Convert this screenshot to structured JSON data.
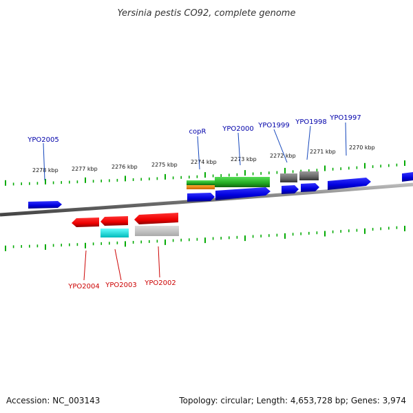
{
  "title": "Yersinia pestis CO92, complete genome",
  "footer": {
    "accession": "Accession: NC_003143",
    "summary": "Topology: circular; Length: 4,653,728 bp; Genes: 3,974"
  },
  "colors": {
    "forward_gene": "#0000ee",
    "reverse_gene": "#ee0000",
    "label_forward": "#0000aa",
    "label_reverse": "#cc0000",
    "tick": "#00aa00",
    "backbone": "#8a8a8a"
  },
  "scale_labels": [
    {
      "text": "2278 kbp"
    },
    {
      "text": "2277 kbp"
    },
    {
      "text": "2276 kbp"
    },
    {
      "text": "2275 kbp"
    },
    {
      "text": "2274 kbp"
    },
    {
      "text": "2273 kbp"
    },
    {
      "text": "2272 kbp"
    },
    {
      "text": "2271 kbp"
    },
    {
      "text": "2270 kbp"
    }
  ],
  "gene_labels": [
    {
      "text": "YPO2005",
      "strand": "forward"
    },
    {
      "text": "copR",
      "strand": "forward"
    },
    {
      "text": "YPO2000",
      "strand": "forward"
    },
    {
      "text": "YPO1999",
      "strand": "forward"
    },
    {
      "text": "YPO1998",
      "strand": "forward"
    },
    {
      "text": "YPO1997",
      "strand": "forward"
    },
    {
      "text": "YPO2004",
      "strand": "reverse"
    },
    {
      "text": "YPO2003",
      "strand": "reverse"
    },
    {
      "text": "YPO2002",
      "strand": "reverse"
    }
  ]
}
